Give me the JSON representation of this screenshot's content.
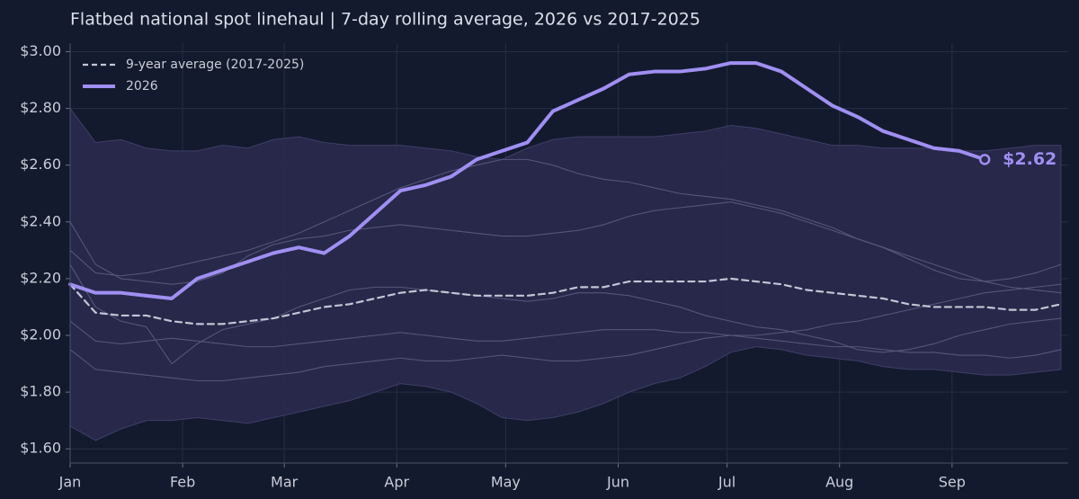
{
  "chart_data": {
    "type": "line",
    "title": "Flatbed national spot linehaul  |  7-day rolling average, 2026 vs 2017-2025",
    "x": [
      1,
      8,
      15,
      22,
      29,
      36,
      43,
      50,
      57,
      64,
      71,
      78,
      85,
      92,
      99,
      106,
      113,
      120,
      127,
      134,
      141,
      148,
      155,
      162,
      169,
      176,
      183,
      190,
      197,
      204,
      211,
      218,
      225,
      232,
      239,
      246,
      253,
      260,
      267,
      274
    ],
    "xlim": [
      1,
      276
    ],
    "xticks": [
      {
        "value": 1,
        "label": "Jan"
      },
      {
        "value": 32,
        "label": "Feb"
      },
      {
        "value": 60,
        "label": "Mar"
      },
      {
        "value": 91,
        "label": "Apr"
      },
      {
        "value": 121,
        "label": "May"
      },
      {
        "value": 152,
        "label": "Jun"
      },
      {
        "value": 182,
        "label": "Jul"
      },
      {
        "value": 213,
        "label": "Aug"
      },
      {
        "value": 244,
        "label": "Sep"
      }
    ],
    "ylim": [
      1.55,
      3.03
    ],
    "yticks": [
      {
        "value": 1.6,
        "label": "$1.60"
      },
      {
        "value": 1.8,
        "label": "$1.80"
      },
      {
        "value": 2.0,
        "label": "$2.00"
      },
      {
        "value": 2.2,
        "label": "$2.20"
      },
      {
        "value": 2.4,
        "label": "$2.40"
      },
      {
        "value": 2.6,
        "label": "$2.60"
      },
      {
        "value": 2.8,
        "label": "$2.80"
      },
      {
        "value": 3.0,
        "label": "$3.00"
      }
    ],
    "grid": true,
    "legend": "upper left",
    "band": {
      "color": "#2a2b4f",
      "upper": [
        2.8,
        2.68,
        2.69,
        2.66,
        2.65,
        2.65,
        2.67,
        2.66,
        2.69,
        2.7,
        2.68,
        2.67,
        2.67,
        2.67,
        2.66,
        2.65,
        2.63,
        2.62,
        2.66,
        2.69,
        2.7,
        2.7,
        2.7,
        2.7,
        2.71,
        2.72,
        2.74,
        2.73,
        2.71,
        2.69,
        2.67,
        2.67,
        2.66,
        2.66,
        2.66,
        2.65,
        2.65,
        2.66,
        2.67,
        2.67
      ],
      "lower": [
        1.68,
        1.63,
        1.67,
        1.7,
        1.7,
        1.71,
        1.7,
        1.69,
        1.71,
        1.73,
        1.75,
        1.77,
        1.8,
        1.83,
        1.82,
        1.8,
        1.76,
        1.71,
        1.7,
        1.71,
        1.73,
        1.76,
        1.8,
        1.83,
        1.85,
        1.89,
        1.94,
        1.96,
        1.95,
        1.93,
        1.92,
        1.91,
        1.89,
        1.88,
        1.88,
        1.87,
        1.86,
        1.86,
        1.87,
        1.88
      ]
    },
    "history_color": "#5a5b80",
    "history": [
      {
        "values": [
          2.4,
          2.25,
          2.2,
          2.19,
          2.18,
          2.19,
          2.22,
          2.28,
          2.32,
          2.34,
          2.35,
          2.37,
          2.38,
          2.39,
          2.38,
          2.37,
          2.36,
          2.35,
          2.35,
          2.36,
          2.37,
          2.39,
          2.42,
          2.44,
          2.45,
          2.46,
          2.47,
          2.45,
          2.43,
          2.4,
          2.37,
          2.34,
          2.31,
          2.28,
          2.25,
          2.22,
          2.19,
          2.17,
          2.16,
          2.15
        ]
      },
      {
        "values": [
          2.3,
          2.22,
          2.21,
          2.22,
          2.24,
          2.26,
          2.28,
          2.3,
          2.33,
          2.36,
          2.4,
          2.44,
          2.48,
          2.52,
          2.55,
          2.58,
          2.6,
          2.62,
          2.62,
          2.6,
          2.57,
          2.55,
          2.54,
          2.52,
          2.5,
          2.49,
          2.48,
          2.46,
          2.44,
          2.41,
          2.38,
          2.34,
          2.31,
          2.27,
          2.23,
          2.2,
          2.19,
          2.2,
          2.22,
          2.25
        ]
      },
      {
        "values": [
          2.25,
          2.1,
          2.05,
          2.03,
          1.9,
          1.97,
          2.02,
          2.04,
          2.06,
          2.1,
          2.13,
          2.16,
          2.17,
          2.17,
          2.16,
          2.15,
          2.14,
          2.13,
          2.12,
          2.13,
          2.15,
          2.15,
          2.14,
          2.12,
          2.1,
          2.07,
          2.05,
          2.03,
          2.02,
          2.0,
          1.98,
          1.95,
          1.94,
          1.95,
          1.97,
          2.0,
          2.02,
          2.04,
          2.05,
          2.06
        ]
      },
      {
        "values": [
          2.05,
          1.98,
          1.97,
          1.98,
          1.99,
          1.98,
          1.97,
          1.96,
          1.96,
          1.97,
          1.98,
          1.99,
          2.0,
          2.01,
          2.0,
          1.99,
          1.98,
          1.98,
          1.99,
          2.0,
          2.01,
          2.02,
          2.02,
          2.02,
          2.01,
          2.01,
          2.0,
          1.99,
          1.98,
          1.97,
          1.96,
          1.96,
          1.95,
          1.94,
          1.94,
          1.93,
          1.93,
          1.92,
          1.93,
          1.95
        ]
      },
      {
        "values": [
          1.95,
          1.88,
          1.87,
          1.86,
          1.85,
          1.84,
          1.84,
          1.85,
          1.86,
          1.87,
          1.89,
          1.9,
          1.91,
          1.92,
          1.91,
          1.91,
          1.92,
          1.93,
          1.92,
          1.91,
          1.91,
          1.92,
          1.93,
          1.95,
          1.97,
          1.99,
          2.0,
          2.0,
          2.01,
          2.02,
          2.04,
          2.05,
          2.07,
          2.09,
          2.11,
          2.13,
          2.15,
          2.16,
          2.17,
          2.18
        ]
      }
    ],
    "series": [
      {
        "name": "9-year average (2017-2025)",
        "color": "#c3c5d4",
        "style": "dashed",
        "values": [
          2.18,
          2.08,
          2.07,
          2.07,
          2.05,
          2.04,
          2.04,
          2.05,
          2.06,
          2.08,
          2.1,
          2.11,
          2.13,
          2.15,
          2.16,
          2.15,
          2.14,
          2.14,
          2.14,
          2.15,
          2.17,
          2.17,
          2.19,
          2.19,
          2.19,
          2.19,
          2.2,
          2.19,
          2.18,
          2.16,
          2.15,
          2.14,
          2.13,
          2.11,
          2.1,
          2.1,
          2.1,
          2.09,
          2.09,
          2.11
        ]
      },
      {
        "name": "2026",
        "color": "#a08ff2",
        "style": "solid",
        "values": [
          2.18,
          2.15,
          2.15,
          2.14,
          2.13,
          2.2,
          2.23,
          2.26,
          2.29,
          2.31,
          2.29,
          2.35,
          2.43,
          2.51,
          2.53,
          2.56,
          2.62,
          2.65,
          2.68,
          2.79,
          2.83,
          2.87,
          2.92,
          2.93,
          2.93,
          2.94,
          2.96,
          2.96,
          2.93,
          2.87,
          2.81,
          2.77,
          2.72,
          2.69,
          2.66,
          2.65,
          2.62,
          null,
          null,
          null
        ],
        "value_labels": [
          null,
          null,
          null,
          null,
          null,
          null,
          null,
          null,
          null,
          null,
          null,
          null,
          null,
          null,
          null,
          null,
          null,
          null,
          null,
          null,
          null,
          null,
          null,
          null,
          null,
          null,
          null,
          null,
          null,
          null,
          null,
          null,
          null,
          null,
          null,
          null,
          "$2.62",
          null,
          null,
          null
        ]
      }
    ]
  }
}
